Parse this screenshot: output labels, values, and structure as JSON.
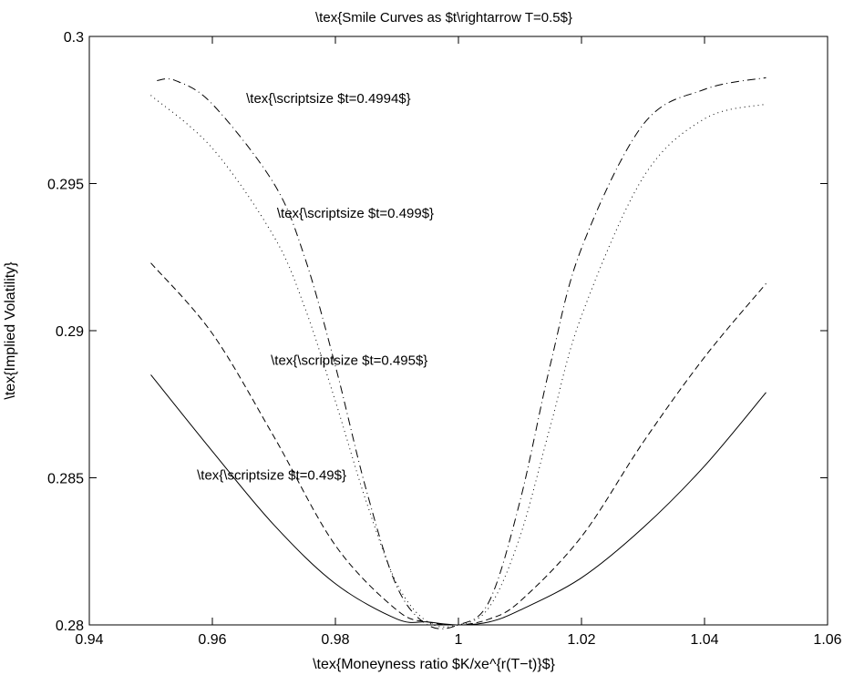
{
  "chart_data": {
    "type": "line",
    "title": "\\tex{Smile Curves as $t\\rightarrow T=0.5$}",
    "xlabel": "\\tex{Moneyness ratio $K/xe^{r(T−t)}$}",
    "ylabel": "\\tex{Implied Volatility}",
    "xlim": [
      0.94,
      1.06
    ],
    "ylim": [
      0.28,
      0.3
    ],
    "xticks": [
      0.94,
      0.96,
      0.98,
      1,
      1.02,
      1.04,
      1.06
    ],
    "xtick_labels": [
      "0.94",
      "0.96",
      "0.98",
      "1",
      "1.02",
      "1.04",
      "1.06"
    ],
    "yticks": [
      0.28,
      0.285,
      0.29,
      0.295,
      0.3
    ],
    "ytick_labels": [
      "0.28",
      "0.285",
      "0.29",
      "0.295",
      "0.3"
    ],
    "grid": false,
    "series": [
      {
        "style": "solid",
        "x": [
          0.95,
          0.96,
          0.97,
          0.98,
          0.99,
          0.995,
          1.0,
          1.005,
          1.01,
          1.02,
          1.03,
          1.04,
          1.05
        ],
        "y": [
          0.2885,
          0.2859,
          0.2834,
          0.2814,
          0.2802,
          0.2801,
          0.28,
          0.2801,
          0.2805,
          0.2816,
          0.2833,
          0.2854,
          0.2879
        ]
      },
      {
        "style": "dashed",
        "x": [
          0.95,
          0.96,
          0.97,
          0.98,
          0.99,
          0.995,
          1.0,
          1.005,
          1.01,
          1.02,
          1.03,
          1.04,
          1.05
        ],
        "y": [
          0.2923,
          0.2899,
          0.2864,
          0.2827,
          0.2805,
          0.2801,
          0.28,
          0.2802,
          0.2808,
          0.283,
          0.2862,
          0.2891,
          0.2916
        ]
      },
      {
        "style": "dotted",
        "x": [
          0.95,
          0.96,
          0.97,
          0.975,
          0.98,
          0.985,
          0.99,
          0.995,
          1.0,
          1.005,
          1.01,
          1.015,
          1.02,
          1.03,
          1.04,
          1.05
        ],
        "y": [
          0.298,
          0.2962,
          0.2932,
          0.2908,
          0.2876,
          0.2842,
          0.2814,
          0.2801,
          0.28,
          0.2806,
          0.283,
          0.2868,
          0.2905,
          0.2952,
          0.2972,
          0.2977
        ]
      },
      {
        "style": "dashdot",
        "x": [
          0.951,
          0.954,
          0.96,
          0.97,
          0.975,
          0.98,
          0.985,
          0.99,
          0.995,
          1.0,
          1.005,
          1.01,
          1.015,
          1.02,
          1.03,
          1.04,
          1.05
        ],
        "y": [
          0.2985,
          0.2985,
          0.2977,
          0.295,
          0.2925,
          0.2888,
          0.2846,
          0.2813,
          0.28,
          0.28,
          0.2808,
          0.2842,
          0.2889,
          0.2928,
          0.297,
          0.2982,
          0.2986
        ]
      }
    ],
    "annotations": [
      {
        "text": "\\tex{\\scriptsize $t=0.4994$}",
        "x": 0.9655,
        "y": 0.2979
      },
      {
        "text": "\\tex{\\scriptsize $t=0.499$}",
        "x": 0.9705,
        "y": 0.294
      },
      {
        "text": "\\tex{\\scriptsize $t=0.495$}",
        "x": 0.9695,
        "y": 0.289
      },
      {
        "text": "\\tex{\\scriptsize $t=0.49$}",
        "x": 0.9575,
        "y": 0.2851
      }
    ]
  }
}
